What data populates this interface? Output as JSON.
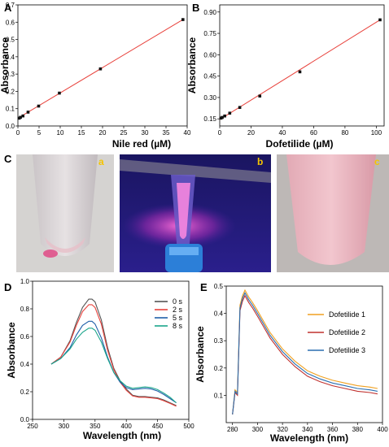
{
  "figure": {
    "panels": {
      "A": "A",
      "B": "B",
      "C": "C",
      "D": "D",
      "E": "E"
    },
    "photo_labels": [
      "a",
      "b",
      "c"
    ]
  },
  "chart_data": [
    {
      "id": "A",
      "type": "scatter",
      "xlabel": "Nile red (µM)",
      "ylabel": "Absorbance",
      "xlim": [
        0,
        40
      ],
      "ylim": [
        0,
        0.7
      ],
      "xticks": [
        0,
        5,
        10,
        15,
        20,
        25,
        30,
        35,
        40
      ],
      "yticks": [
        0.0,
        0.1,
        0.2,
        0.3,
        0.4,
        0.5,
        0.6,
        0.7
      ],
      "xtick_labels": [
        "0",
        "5",
        "10",
        "15",
        "20",
        "25",
        "30",
        "35",
        "40"
      ],
      "ytick_labels": [
        "0.0",
        "0.1",
        "0.2",
        "0.3",
        "0.4",
        "0.5",
        "0.6",
        "0.7"
      ],
      "points": {
        "x": [
          0.3,
          0.6,
          1.2,
          2.4,
          4.9,
          9.8,
          19.5,
          39
        ],
        "y": [
          0.045,
          0.05,
          0.058,
          0.08,
          0.115,
          0.19,
          0.33,
          0.615
        ]
      },
      "fit": {
        "x": [
          0,
          39
        ],
        "y": [
          0.045,
          0.615
        ],
        "color": "#e8413b"
      },
      "grid": false
    },
    {
      "id": "B",
      "type": "scatter",
      "xlabel": "Dofetilide (µM)",
      "ylabel": "Absorbance",
      "xlim": [
        0,
        105
      ],
      "ylim": [
        0.1,
        0.95
      ],
      "xticks": [
        0,
        20,
        40,
        60,
        80,
        100
      ],
      "yticks": [
        0.15,
        0.3,
        0.45,
        0.6,
        0.75,
        0.9
      ],
      "xtick_labels": [
        "0",
        "20",
        "40",
        "60",
        "80",
        "100"
      ],
      "ytick_labels": [
        "0.15",
        "0.30",
        "0.45",
        "0.60",
        "0.75",
        "0.90"
      ],
      "points": {
        "x": [
          0.8,
          1.6,
          3.2,
          6.4,
          12.8,
          25.6,
          51.2,
          102.4
        ],
        "y": [
          0.155,
          0.16,
          0.17,
          0.19,
          0.23,
          0.31,
          0.48,
          0.845
        ]
      },
      "fit": {
        "x": [
          0,
          102.4
        ],
        "y": [
          0.145,
          0.845
        ],
        "color": "#e8413b"
      },
      "grid": false
    },
    {
      "id": "D",
      "type": "line",
      "xlabel": "Wavelength (nm)",
      "ylabel": "Absorbance",
      "xlim": [
        250,
        500
      ],
      "ylim": [
        0,
        1.0
      ],
      "xticks": [
        250,
        300,
        350,
        400,
        450,
        500
      ],
      "yticks": [
        0.0,
        0.2,
        0.4,
        0.6,
        0.8,
        1.0
      ],
      "xtick_labels": [
        "250",
        "300",
        "350",
        "400",
        "450",
        "500"
      ],
      "ytick_labels": [
        "0.0",
        "0.2",
        "0.4",
        "0.6",
        "0.8",
        "1.0"
      ],
      "legend": "top-right",
      "grid": false,
      "series": [
        {
          "name": "0 s",
          "color": "#555555",
          "x": [
            280,
            295,
            310,
            320,
            330,
            340,
            345,
            350,
            360,
            370,
            380,
            390,
            400,
            410,
            420,
            430,
            440,
            450,
            460,
            470,
            480
          ],
          "y": [
            0.4,
            0.45,
            0.57,
            0.7,
            0.81,
            0.87,
            0.87,
            0.85,
            0.72,
            0.52,
            0.37,
            0.28,
            0.22,
            0.175,
            0.165,
            0.165,
            0.16,
            0.155,
            0.14,
            0.12,
            0.1
          ]
        },
        {
          "name": "2 s",
          "color": "#e8413b",
          "x": [
            280,
            295,
            310,
            320,
            330,
            340,
            345,
            350,
            360,
            370,
            380,
            390,
            400,
            410,
            420,
            430,
            440,
            450,
            460,
            470,
            480
          ],
          "y": [
            0.4,
            0.45,
            0.56,
            0.68,
            0.78,
            0.83,
            0.83,
            0.81,
            0.69,
            0.5,
            0.36,
            0.27,
            0.21,
            0.17,
            0.16,
            0.16,
            0.155,
            0.15,
            0.135,
            0.115,
            0.095
          ]
        },
        {
          "name": "5 s",
          "color": "#1f5fa8",
          "x": [
            280,
            295,
            310,
            320,
            330,
            340,
            345,
            350,
            360,
            370,
            380,
            390,
            400,
            410,
            420,
            430,
            440,
            450,
            460,
            470,
            480
          ],
          "y": [
            0.4,
            0.44,
            0.52,
            0.61,
            0.68,
            0.71,
            0.71,
            0.69,
            0.59,
            0.45,
            0.34,
            0.27,
            0.23,
            0.215,
            0.22,
            0.225,
            0.22,
            0.205,
            0.18,
            0.15,
            0.12
          ]
        },
        {
          "name": "8 s",
          "color": "#1aa58a",
          "x": [
            280,
            295,
            310,
            320,
            330,
            340,
            345,
            350,
            360,
            370,
            380,
            390,
            400,
            410,
            420,
            430,
            440,
            450,
            460,
            470,
            480
          ],
          "y": [
            0.4,
            0.44,
            0.51,
            0.58,
            0.63,
            0.66,
            0.66,
            0.645,
            0.56,
            0.44,
            0.34,
            0.28,
            0.24,
            0.225,
            0.23,
            0.235,
            0.23,
            0.215,
            0.19,
            0.16,
            0.12
          ]
        }
      ]
    },
    {
      "id": "E",
      "type": "line",
      "xlabel": "Wavelength (nm)",
      "ylabel": "Absorbance",
      "xlim": [
        275,
        400
      ],
      "ylim": [
        0,
        0.5
      ],
      "xticks": [
        280,
        300,
        320,
        340,
        360,
        380,
        400
      ],
      "yticks": [
        0.1,
        0.2,
        0.3,
        0.4,
        0.5
      ],
      "xtick_labels": [
        "280",
        "300",
        "320",
        "340",
        "360",
        "380",
        "400"
      ],
      "ytick_labels": [
        "0.1",
        "0.2",
        "0.3",
        "0.4",
        "0.5"
      ],
      "legend": "top-right",
      "grid": false,
      "series": [
        {
          "name": "Dofetilide 1",
          "color": "#f0a020",
          "x": [
            280,
            282,
            284,
            286,
            288,
            290,
            293,
            296,
            300,
            305,
            310,
            320,
            330,
            340,
            350,
            360,
            370,
            380,
            390,
            396
          ],
          "y": [
            0.03,
            0.12,
            0.11,
            0.43,
            0.465,
            0.485,
            0.46,
            0.44,
            0.41,
            0.37,
            0.33,
            0.27,
            0.225,
            0.19,
            0.17,
            0.155,
            0.145,
            0.135,
            0.13,
            0.125
          ]
        },
        {
          "name": "Dofetilide 2",
          "color": "#c0302e",
          "x": [
            280,
            282,
            284,
            286,
            288,
            290,
            293,
            296,
            300,
            305,
            310,
            320,
            330,
            340,
            350,
            360,
            370,
            380,
            390,
            396
          ],
          "y": [
            0.03,
            0.11,
            0.1,
            0.41,
            0.445,
            0.465,
            0.44,
            0.42,
            0.39,
            0.35,
            0.31,
            0.25,
            0.205,
            0.17,
            0.15,
            0.135,
            0.125,
            0.115,
            0.11,
            0.105
          ]
        },
        {
          "name": "Dofetilide 3",
          "color": "#2a6fb0",
          "x": [
            280,
            282,
            284,
            286,
            288,
            290,
            293,
            296,
            300,
            305,
            310,
            320,
            330,
            340,
            350,
            360,
            370,
            380,
            390,
            396
          ],
          "y": [
            0.03,
            0.115,
            0.105,
            0.42,
            0.455,
            0.475,
            0.45,
            0.43,
            0.4,
            0.36,
            0.32,
            0.26,
            0.215,
            0.18,
            0.16,
            0.145,
            0.135,
            0.125,
            0.12,
            0.115
          ]
        }
      ]
    }
  ]
}
